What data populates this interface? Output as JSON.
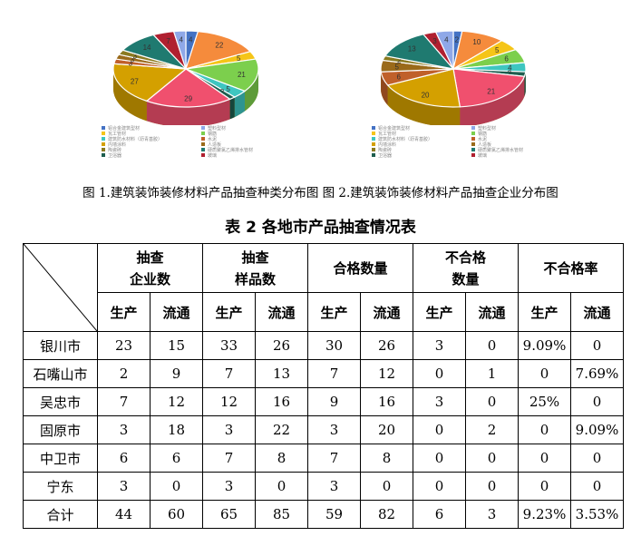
{
  "charts": [
    {
      "type": "pie",
      "values": [
        4,
        22,
        5,
        21,
        5,
        2,
        29,
        27,
        3,
        3,
        3,
        14,
        7,
        4
      ],
      "colors": [
        "#4472c4",
        "#f58b3c",
        "#f5c518",
        "#7ccf4d",
        "#3ec6c0",
        "#1e5e4f",
        "#f0506e",
        "#d4a000",
        "#c0602a",
        "#9a6a1a",
        "#8a7a20",
        "#1f7a70",
        "#b02030",
        "#8fa8e8"
      ]
    },
    {
      "type": "pie",
      "values": [
        2,
        10,
        5,
        6,
        4,
        2,
        21,
        20,
        6,
        5,
        2,
        13,
        3,
        4
      ],
      "colors": [
        "#4472c4",
        "#f58b3c",
        "#f5c518",
        "#7ccf4d",
        "#3ec6c0",
        "#1e5e4f",
        "#f0506e",
        "#d4a000",
        "#c0602a",
        "#9a6a1a",
        "#8a7a20",
        "#1f7a70",
        "#b02030",
        "#8fa8e8"
      ]
    }
  ],
  "legend": [
    {
      "label": "铝合金建筑型材",
      "color": "#4472c4"
    },
    {
      "label": "塑料型材",
      "color": "#8fa8e8"
    },
    {
      "label": "瓦工管材",
      "color": "#f5c518"
    },
    {
      "label": "钢筋",
      "color": "#7ccf4d"
    },
    {
      "label": "建筑防水材料（沥青基胶）",
      "color": "#3ec6c0"
    },
    {
      "label": "水泥",
      "color": "#c0602a"
    },
    {
      "label": "内墙涂料",
      "color": "#d4a000"
    },
    {
      "label": "人造板",
      "color": "#9a6a1a"
    },
    {
      "label": "陶瓷砖",
      "color": "#8a7a20"
    },
    {
      "label": "硬质聚氯乙烯排水管材",
      "color": "#1f7a70"
    },
    {
      "label": "卫浴器",
      "color": "#1e5e4f"
    },
    {
      "label": "玻璃",
      "color": "#b02030"
    }
  ],
  "caption": "图 1.建筑装饰装修材料产品抽查种类分布图  图 2.建筑装饰装修材料产品抽查企业分布图",
  "table": {
    "title": "表 2  各地市产品抽查情况表",
    "groups": [
      "抽查\n企业数",
      "抽查\n样品数",
      "合格数量",
      "不合格\n数量",
      "不合格率"
    ],
    "sub": [
      "生产",
      "流通"
    ],
    "rows": [
      [
        "银川市",
        "23",
        "15",
        "33",
        "26",
        "30",
        "26",
        "3",
        "0",
        "9.09%",
        "0"
      ],
      [
        "石嘴山市",
        "2",
        "9",
        "7",
        "13",
        "7",
        "12",
        "0",
        "1",
        "0",
        "7.69%"
      ],
      [
        "吴忠市",
        "7",
        "12",
        "12",
        "16",
        "9",
        "16",
        "3",
        "0",
        "25%",
        "0"
      ],
      [
        "固原市",
        "3",
        "18",
        "3",
        "22",
        "3",
        "20",
        "0",
        "2",
        "0",
        "9.09%"
      ],
      [
        "中卫市",
        "6",
        "6",
        "7",
        "8",
        "7",
        "8",
        "0",
        "0",
        "0",
        "0"
      ],
      [
        "宁东",
        "3",
        "0",
        "3",
        "0",
        "3",
        "0",
        "0",
        "0",
        "0",
        "0"
      ],
      [
        "合计",
        "44",
        "60",
        "65",
        "85",
        "59",
        "82",
        "6",
        "3",
        "9.23%",
        "3.53%"
      ]
    ]
  }
}
